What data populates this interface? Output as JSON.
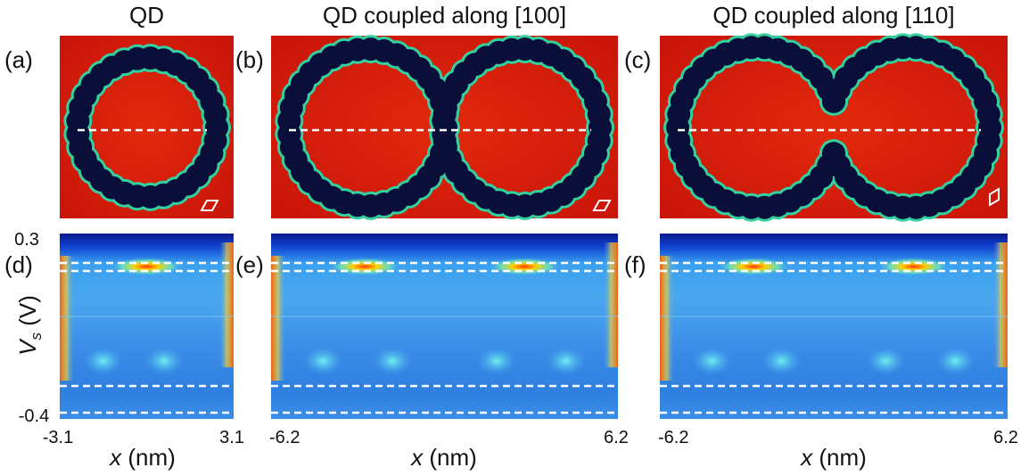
{
  "columns": [
    {
      "title": "QD",
      "top_panel": "(a)",
      "bottom_panel": "(d)",
      "x_min": "-3.1",
      "x_max": "3.1",
      "x_label": {
        "symbol": "x",
        "unit": "(nm)"
      }
    },
    {
      "title": "QD coupled along [100]",
      "top_panel": "(b)",
      "bottom_panel": "(e)",
      "x_min": "-6.2",
      "x_max": "6.2",
      "x_label": {
        "symbol": "x",
        "unit": "(nm)"
      }
    },
    {
      "title": "QD coupled along [110]",
      "top_panel": "(c)",
      "bottom_panel": "(f)",
      "x_min": "-6.2",
      "x_max": "6.2",
      "x_label": {
        "symbol": "x",
        "unit": "(nm)"
      }
    }
  ],
  "y_axis": {
    "max": "0.3",
    "min": "-0.4",
    "label": {
      "symbol": "V",
      "subscript": "s",
      "unit": "(V)"
    }
  }
}
